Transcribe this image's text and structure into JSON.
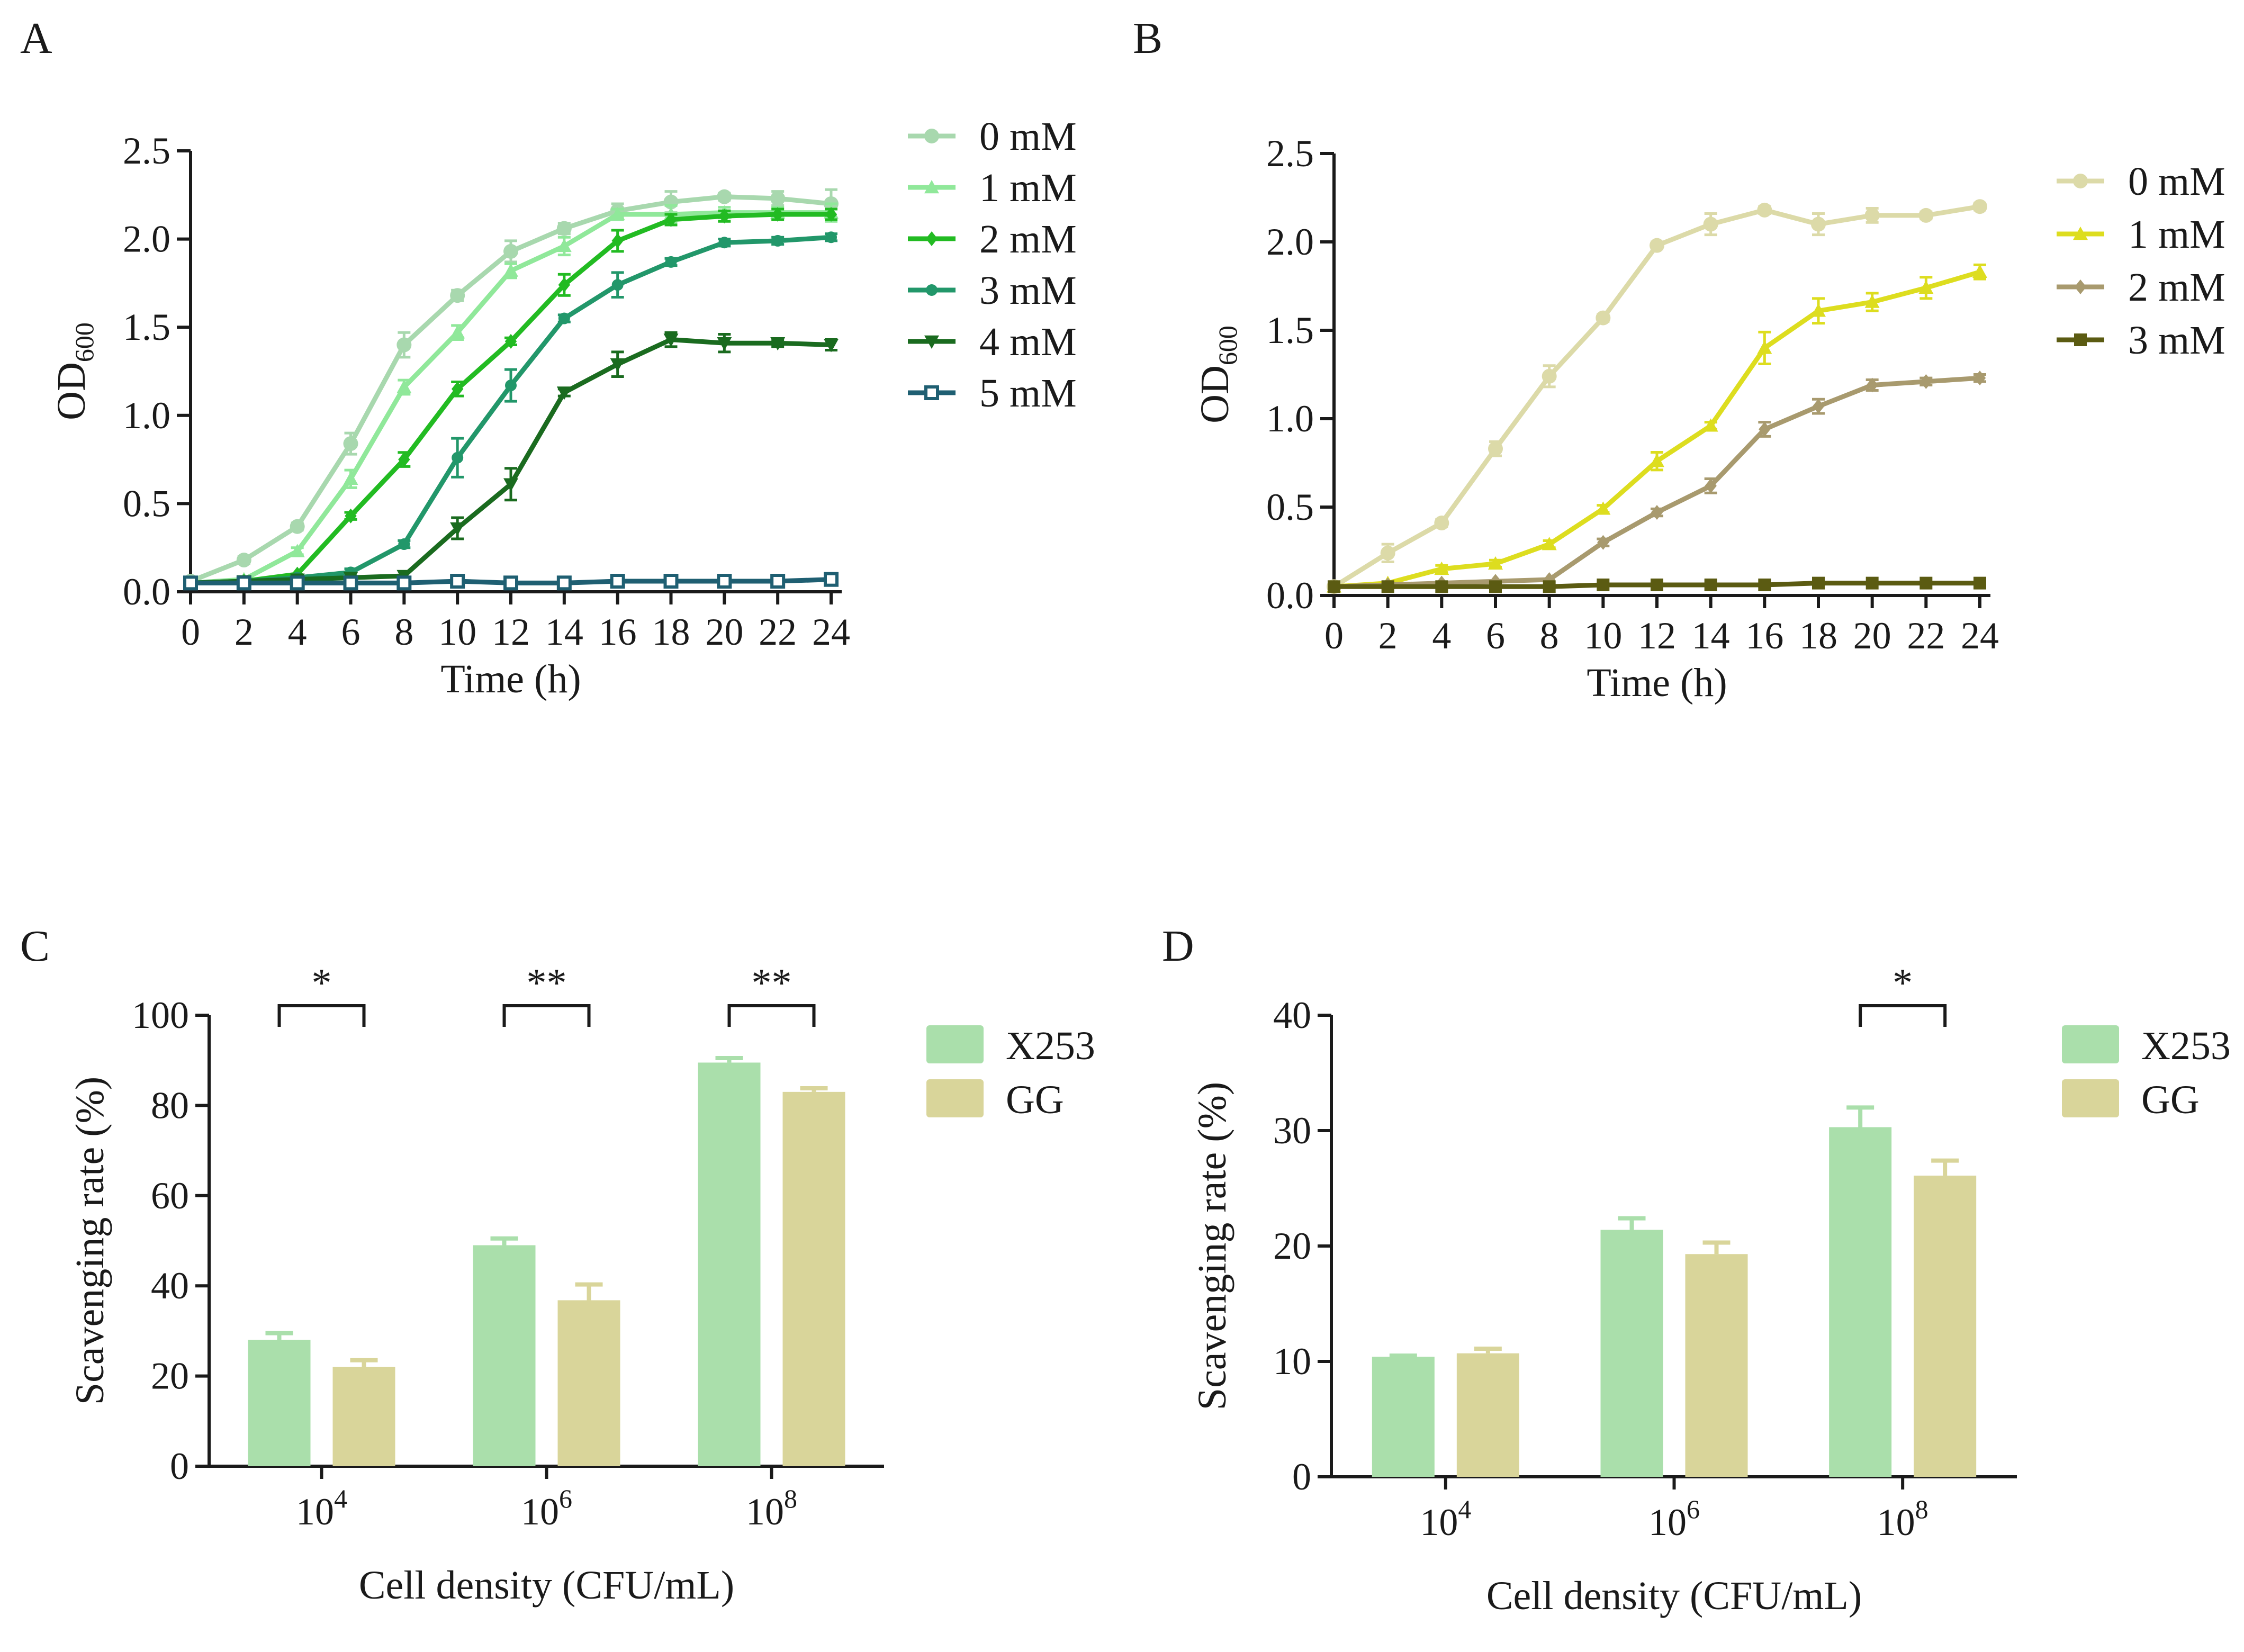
{
  "chart_data": [
    {
      "type": "line",
      "panel_label": "A",
      "title": "",
      "ylabel_main": "OD",
      "ylabel_sub": "600",
      "xlabel": "Time (h)",
      "ylim": [
        0,
        2.5
      ],
      "xlim": [
        0,
        24
      ],
      "yticks": [
        "0.0",
        "0.5",
        "1.0",
        "1.5",
        "2.0",
        "2.5"
      ],
      "xticks": [
        "0",
        "2",
        "4",
        "6",
        "8",
        "10",
        "12",
        "14",
        "16",
        "18",
        "20",
        "22",
        "24"
      ],
      "x": [
        0,
        2,
        4,
        6,
        8,
        10,
        12,
        14,
        16,
        18,
        20,
        22,
        24
      ],
      "series": [
        {
          "name": "0 mM",
          "color": "#a8d8ae",
          "marker": "circle",
          "values": [
            0.06,
            0.18,
            0.37,
            0.84,
            1.4,
            1.68,
            1.93,
            2.06,
            2.16,
            2.21,
            2.24,
            2.23,
            2.2
          ],
          "errors": [
            0.01,
            0.02,
            0.02,
            0.06,
            0.07,
            0.03,
            0.06,
            0.03,
            0.04,
            0.06,
            0.02,
            0.04,
            0.08
          ]
        },
        {
          "name": "1 mM",
          "color": "#90e89a",
          "marker": "triangle",
          "values": [
            0.05,
            0.07,
            0.23,
            0.64,
            1.16,
            1.47,
            1.82,
            1.96,
            2.14,
            2.14,
            2.15,
            2.15,
            2.15
          ],
          "errors": [
            0.01,
            0.01,
            0.02,
            0.05,
            0.04,
            0.04,
            0.04,
            0.05,
            0.03,
            0.05,
            0.03,
            0.03,
            0.05
          ]
        },
        {
          "name": "2 mM",
          "color": "#22bb22",
          "marker": "diamond",
          "values": [
            0.05,
            0.06,
            0.1,
            0.43,
            0.75,
            1.15,
            1.42,
            1.74,
            1.99,
            2.11,
            2.13,
            2.14,
            2.14
          ],
          "errors": [
            0.01,
            0.01,
            0.01,
            0.02,
            0.04,
            0.04,
            0.02,
            0.06,
            0.06,
            0.03,
            0.03,
            0.03,
            0.03
          ]
        },
        {
          "name": "3 mM",
          "color": "#22976a",
          "marker": "circle-small",
          "values": [
            0.05,
            0.06,
            0.08,
            0.11,
            0.27,
            0.76,
            1.17,
            1.55,
            1.74,
            1.87,
            1.98,
            1.99,
            2.01
          ],
          "errors": [
            0.01,
            0.01,
            0.01,
            0.02,
            0.02,
            0.11,
            0.09,
            0.02,
            0.07,
            0.02,
            0.02,
            0.02,
            0.02
          ]
        },
        {
          "name": "4 mM",
          "color": "#1a6b1f",
          "marker": "triangle-down",
          "values": [
            0.05,
            0.06,
            0.07,
            0.08,
            0.09,
            0.36,
            0.61,
            1.13,
            1.29,
            1.43,
            1.41,
            1.41,
            1.4
          ],
          "errors": [
            0.01,
            0.01,
            0.01,
            0.01,
            0.01,
            0.06,
            0.09,
            0.02,
            0.07,
            0.04,
            0.05,
            0.02,
            0.03
          ]
        },
        {
          "name": "5 mM",
          "color": "#1f5f72",
          "marker": "square-open",
          "values": [
            0.05,
            0.05,
            0.05,
            0.05,
            0.05,
            0.06,
            0.05,
            0.05,
            0.06,
            0.06,
            0.06,
            0.06,
            0.07
          ],
          "errors": [
            0.005,
            0.005,
            0.005,
            0.005,
            0.005,
            0.005,
            0.005,
            0.005,
            0.005,
            0.005,
            0.005,
            0.005,
            0.005
          ]
        }
      ]
    },
    {
      "type": "line",
      "panel_label": "B",
      "title": "",
      "ylabel_main": "OD",
      "ylabel_sub": "600",
      "xlabel": "Time (h)",
      "ylim": [
        0,
        2.5
      ],
      "xlim": [
        0,
        24
      ],
      "yticks": [
        "0.0",
        "0.5",
        "1.0",
        "1.5",
        "2.0",
        "2.5"
      ],
      "xticks": [
        "0",
        "2",
        "4",
        "6",
        "8",
        "10",
        "12",
        "14",
        "16",
        "18",
        "20",
        "22",
        "24"
      ],
      "x": [
        0,
        2,
        4,
        6,
        8,
        10,
        12,
        14,
        16,
        18,
        20,
        22,
        24
      ],
      "series": [
        {
          "name": "0 mM",
          "color": "#dcdaa8",
          "marker": "circle",
          "values": [
            0.05,
            0.24,
            0.41,
            0.83,
            1.24,
            1.57,
            1.98,
            2.1,
            2.18,
            2.1,
            2.15,
            2.15,
            2.2
          ],
          "errors": [
            0.01,
            0.05,
            0.02,
            0.04,
            0.06,
            0.02,
            0.02,
            0.06,
            0.02,
            0.06,
            0.04,
            0.02,
            0.02
          ]
        },
        {
          "name": "1 mM",
          "color": "#dddd1f",
          "marker": "triangle",
          "values": [
            0.05,
            0.07,
            0.15,
            0.18,
            0.29,
            0.49,
            0.76,
            0.96,
            1.4,
            1.61,
            1.66,
            1.74,
            1.83
          ],
          "errors": [
            0.01,
            0.01,
            0.02,
            0.02,
            0.02,
            0.02,
            0.05,
            0.02,
            0.09,
            0.07,
            0.05,
            0.06,
            0.04
          ]
        },
        {
          "name": "2 mM",
          "color": "#a89a6e",
          "marker": "diamond",
          "values": [
            0.05,
            0.06,
            0.07,
            0.08,
            0.09,
            0.3,
            0.47,
            0.62,
            0.94,
            1.07,
            1.19,
            1.21,
            1.23
          ],
          "errors": [
            0.01,
            0.01,
            0.01,
            0.01,
            0.01,
            0.02,
            0.02,
            0.04,
            0.04,
            0.04,
            0.03,
            0.02,
            0.02
          ]
        },
        {
          "name": "3 mM",
          "color": "#5b5b12",
          "marker": "square",
          "values": [
            0.05,
            0.05,
            0.05,
            0.05,
            0.05,
            0.06,
            0.06,
            0.06,
            0.06,
            0.07,
            0.07,
            0.07,
            0.07
          ],
          "errors": [
            0.005,
            0.005,
            0.005,
            0.005,
            0.005,
            0.005,
            0.005,
            0.005,
            0.005,
            0.005,
            0.005,
            0.005,
            0.005
          ]
        }
      ]
    },
    {
      "type": "bar",
      "panel_label": "C",
      "title": "",
      "ylabel": "Scavenging rate (%)",
      "xlabel": "Cell density (CFU/mL)",
      "ylim": [
        0,
        100
      ],
      "yticks": [
        "0",
        "20",
        "40",
        "60",
        "80",
        "100"
      ],
      "categories": [
        {
          "base": "10",
          "exp": "4"
        },
        {
          "base": "10",
          "exp": "6"
        },
        {
          "base": "10",
          "exp": "8"
        }
      ],
      "series": [
        {
          "name": "X253",
          "color": "#aadfab",
          "values": [
            28.0,
            49.0,
            89.5
          ],
          "errors": [
            1.5,
            1.5,
            1.0
          ]
        },
        {
          "name": "GG",
          "color": "#d9d59a",
          "values": [
            22.0,
            36.8,
            83.0
          ],
          "errors": [
            1.5,
            3.5,
            0.8
          ]
        }
      ],
      "significance": [
        "*",
        "**",
        "**"
      ]
    },
    {
      "type": "bar",
      "panel_label": "D",
      "title": "",
      "ylabel": "Scavenging rate (%)",
      "xlabel": "Cell density (CFU/mL)",
      "ylim": [
        0,
        40
      ],
      "yticks": [
        "0",
        "10",
        "20",
        "30",
        "40"
      ],
      "categories": [
        {
          "base": "10",
          "exp": "4"
        },
        {
          "base": "10",
          "exp": "6"
        },
        {
          "base": "10",
          "exp": "8"
        }
      ],
      "series": [
        {
          "name": "X253",
          "color": "#aadfab",
          "values": [
            10.4,
            21.4,
            30.3
          ],
          "errors": [
            0.1,
            1.0,
            1.7
          ]
        },
        {
          "name": "GG",
          "color": "#d9d59a",
          "values": [
            10.7,
            19.3,
            26.1
          ],
          "errors": [
            0.4,
            1.0,
            1.3
          ]
        }
      ],
      "significance": [
        "",
        "",
        "*"
      ]
    }
  ]
}
